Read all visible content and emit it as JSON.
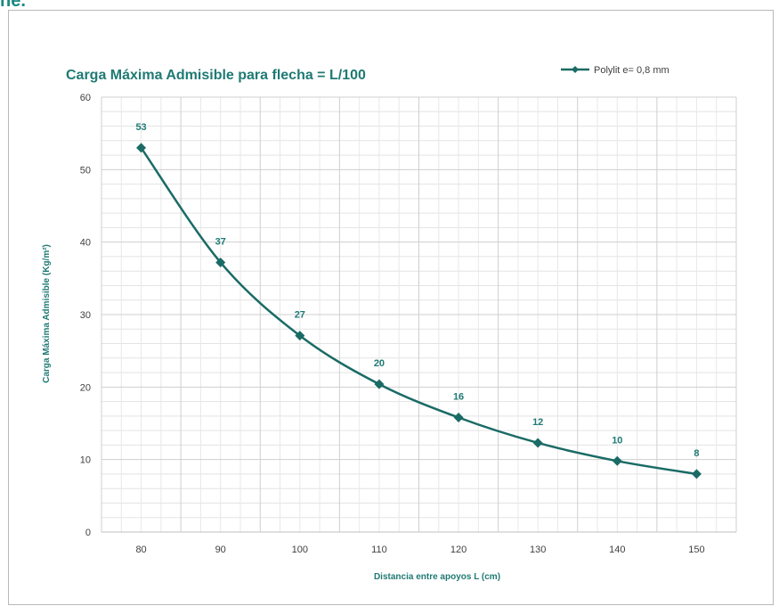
{
  "heading_fragment": "ne.",
  "chart_data": {
    "type": "line",
    "title": "Carga Máxima Admisible para flecha = L/100",
    "xlabel": "Distancia entre apoyos L (cm)",
    "ylabel": "Carga Máxima Admisible (Kg/m²)",
    "x": [
      80,
      90,
      100,
      110,
      120,
      130,
      140,
      150
    ],
    "x_ticks": [
      "80",
      "90",
      "100",
      "110",
      "120",
      "130",
      "140",
      "150"
    ],
    "y_ticks": [
      "0",
      "10",
      "20",
      "30",
      "40",
      "50",
      "60"
    ],
    "ylim": [
      0,
      60
    ],
    "series": [
      {
        "name": "Polylit e= 0,8 mm",
        "values": [
          53,
          37.2,
          27.1,
          20.4,
          15.8,
          12.3,
          9.8,
          8
        ],
        "data_labels": [
          "53",
          "37",
          "27",
          "20",
          "16",
          "12",
          "10",
          "8"
        ],
        "color": "#1a6b65",
        "marker": "diamond"
      }
    ],
    "legend_position": "top-right",
    "grid": true,
    "minor_grid": true
  }
}
